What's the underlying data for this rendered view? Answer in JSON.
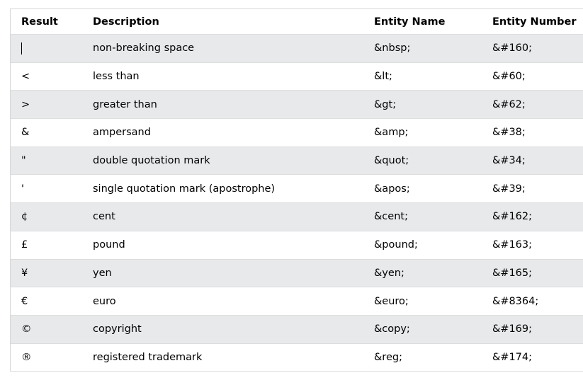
{
  "table": {
    "headers": {
      "result": "Result",
      "description": "Description",
      "entity_name": "Entity Name",
      "entity_number": "Entity Number"
    },
    "rows": [
      {
        "result": " ",
        "description": "non-breaking space",
        "entity_name": "&nbsp;",
        "entity_number": "&#160;"
      },
      {
        "result": "<",
        "description": "less than",
        "entity_name": "&lt;",
        "entity_number": "&#60;"
      },
      {
        "result": ">",
        "description": "greater than",
        "entity_name": "&gt;",
        "entity_number": "&#62;"
      },
      {
        "result": "&",
        "description": "ampersand",
        "entity_name": "&amp;",
        "entity_number": "&#38;"
      },
      {
        "result": "\"",
        "description": "double quotation mark",
        "entity_name": "&quot;",
        "entity_number": "&#34;"
      },
      {
        "result": "'",
        "description": "single quotation mark (apostrophe)",
        "entity_name": "&apos;",
        "entity_number": "&#39;"
      },
      {
        "result": "¢",
        "description": "cent",
        "entity_name": "&cent;",
        "entity_number": "&#162;"
      },
      {
        "result": "£",
        "description": "pound",
        "entity_name": "&pound;",
        "entity_number": "&#163;"
      },
      {
        "result": "¥",
        "description": "yen",
        "entity_name": "&yen;",
        "entity_number": "&#165;"
      },
      {
        "result": "€",
        "description": "euro",
        "entity_name": "&euro;",
        "entity_number": "&#8364;"
      },
      {
        "result": "©",
        "description": "copyright",
        "entity_name": "&copy;",
        "entity_number": "&#169;"
      },
      {
        "result": "®",
        "description": "registered trademark",
        "entity_name": "&reg;",
        "entity_number": "&#174;"
      }
    ]
  }
}
